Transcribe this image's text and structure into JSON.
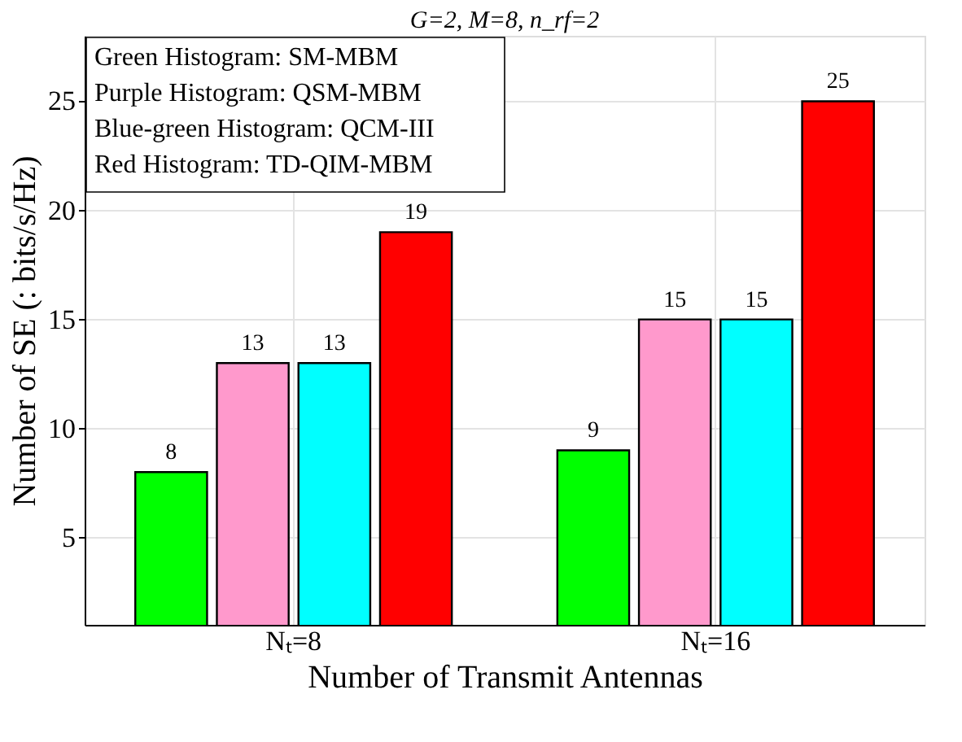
{
  "chart_data": {
    "type": "bar",
    "title": "G=2, M=8, n_rf=2",
    "xlabel": "Number of Transmit Antennas",
    "ylabel": "Number of SE (: bits/s/Hz)",
    "categories": [
      "Nₜ=8",
      "Nₜ=16"
    ],
    "series": [
      {
        "color": "#00ff00",
        "values": [
          8,
          9
        ]
      },
      {
        "color": "#ff99cc",
        "values": [
          13,
          15
        ]
      },
      {
        "color": "#00ffff",
        "values": [
          13,
          15
        ]
      },
      {
        "color": "#ff0000",
        "values": [
          19,
          25
        ]
      }
    ],
    "ylim": [
      1,
      28
    ],
    "yticks": [
      5,
      10,
      15,
      20,
      25
    ],
    "grid": true,
    "data_labels": true,
    "annotations": [
      "Green Histogram: SM-MBM",
      "Purple Histogram: QSM-MBM",
      "Blue-green Histogram: QCM-III",
      "Red Histogram: TD-QIM-MBM"
    ]
  }
}
